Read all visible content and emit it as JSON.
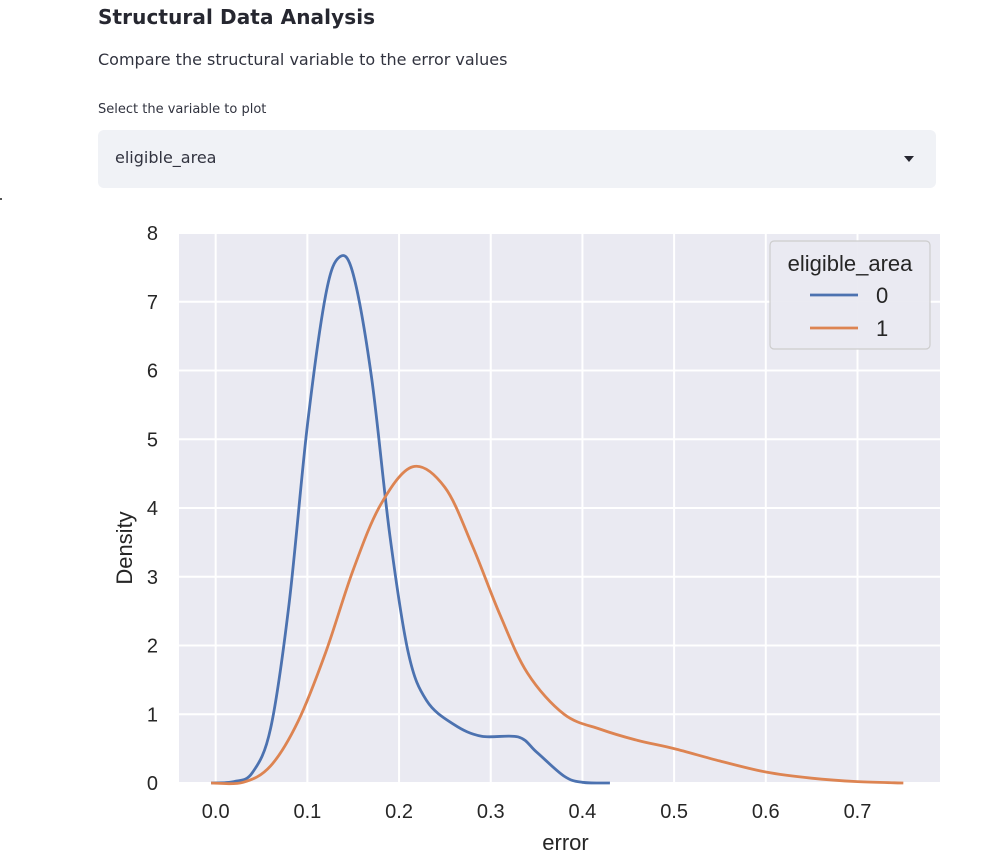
{
  "header": {
    "title": "Structural Data Analysis",
    "subtitle": "Compare the structural variable to the error values"
  },
  "select": {
    "label": "Select the variable to plot",
    "value": "eligible_area"
  },
  "chart_data": {
    "type": "line",
    "title": "",
    "xlabel": "error",
    "ylabel": "Density",
    "xlim": [
      -0.04,
      0.79
    ],
    "ylim": [
      0,
      8
    ],
    "xticks": [
      "0.0",
      "0.1",
      "0.2",
      "0.3",
      "0.4",
      "0.5",
      "0.6",
      "0.7"
    ],
    "yticks": [
      "0",
      "1",
      "2",
      "3",
      "4",
      "5",
      "6",
      "7",
      "8"
    ],
    "grid": true,
    "legend": {
      "title": "eligible_area",
      "position": "top-right"
    },
    "series": [
      {
        "name": "0",
        "color": "#4c72b0",
        "points": [
          [
            -0.005,
            0
          ],
          [
            0.02,
            0.02
          ],
          [
            0.04,
            0.15
          ],
          [
            0.06,
            0.8
          ],
          [
            0.08,
            2.6
          ],
          [
            0.1,
            5.2
          ],
          [
            0.12,
            7.1
          ],
          [
            0.135,
            7.65
          ],
          [
            0.15,
            7.4
          ],
          [
            0.17,
            5.9
          ],
          [
            0.19,
            3.6
          ],
          [
            0.21,
            1.9
          ],
          [
            0.23,
            1.2
          ],
          [
            0.26,
            0.85
          ],
          [
            0.29,
            0.68
          ],
          [
            0.33,
            0.67
          ],
          [
            0.35,
            0.45
          ],
          [
            0.38,
            0.1
          ],
          [
            0.4,
            0.01
          ],
          [
            0.43,
            0
          ]
        ]
      },
      {
        "name": "1",
        "color": "#dd8452",
        "points": [
          [
            -0.005,
            0
          ],
          [
            0.03,
            0.01
          ],
          [
            0.06,
            0.25
          ],
          [
            0.09,
            0.9
          ],
          [
            0.12,
            1.9
          ],
          [
            0.15,
            3.1
          ],
          [
            0.18,
            4.05
          ],
          [
            0.215,
            4.6
          ],
          [
            0.25,
            4.3
          ],
          [
            0.28,
            3.45
          ],
          [
            0.31,
            2.45
          ],
          [
            0.34,
            1.6
          ],
          [
            0.38,
            1.0
          ],
          [
            0.42,
            0.78
          ],
          [
            0.46,
            0.62
          ],
          [
            0.5,
            0.5
          ],
          [
            0.55,
            0.32
          ],
          [
            0.6,
            0.16
          ],
          [
            0.65,
            0.07
          ],
          [
            0.7,
            0.02
          ],
          [
            0.75,
            0
          ]
        ]
      }
    ]
  }
}
